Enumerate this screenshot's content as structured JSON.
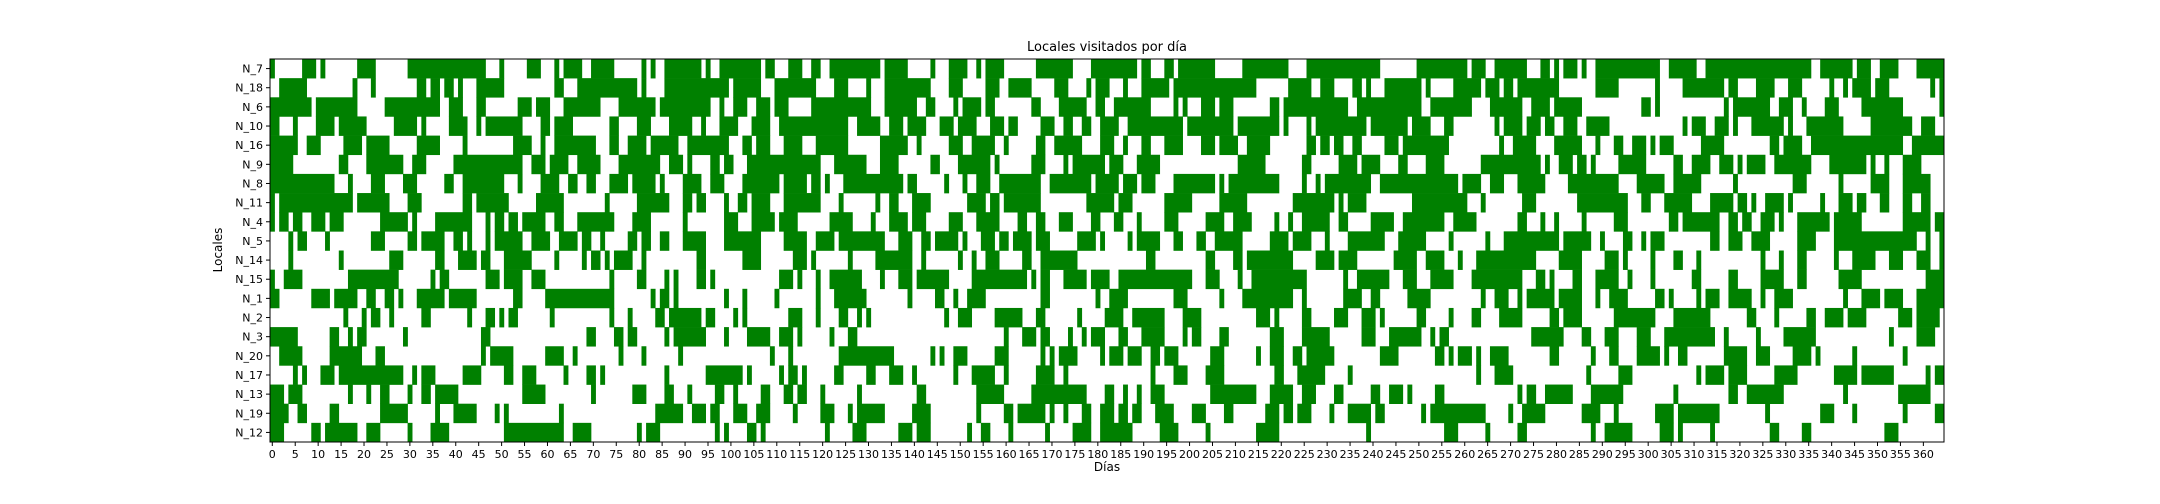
{
  "chart_data": {
    "type": "heatmap",
    "title": "Locales visitados por día",
    "xlabel": "Días",
    "ylabel": "Locales",
    "xlim": [
      0,
      365
    ],
    "x_ticks": [
      0,
      5,
      10,
      15,
      20,
      25,
      30,
      35,
      40,
      45,
      50,
      55,
      60,
      65,
      70,
      75,
      80,
      85,
      90,
      95,
      100,
      105,
      110,
      115,
      120,
      125,
      130,
      135,
      140,
      145,
      150,
      155,
      160,
      165,
      170,
      175,
      180,
      185,
      190,
      195,
      200,
      205,
      210,
      215,
      220,
      225,
      230,
      235,
      240,
      245,
      250,
      255,
      260,
      265,
      270,
      275,
      280,
      285,
      290,
      295,
      300,
      305,
      310,
      315,
      320,
      325,
      330,
      335,
      340,
      345,
      350,
      355,
      360
    ],
    "y_categories": [
      "N_7",
      "N_18",
      "N_6",
      "N_10",
      "N_16",
      "N_9",
      "N_8",
      "N_11",
      "N_4",
      "N_5",
      "N_14",
      "N_15",
      "N_1",
      "N_2",
      "N_3",
      "N_20",
      "N_17",
      "N_13",
      "N_19",
      "N_12"
    ],
    "visit_density": [
      0.66,
      0.62,
      0.6,
      0.58,
      0.57,
      0.55,
      0.54,
      0.52,
      0.47,
      0.46,
      0.44,
      0.42,
      0.41,
      0.4,
      0.38,
      0.37,
      0.36,
      0.34,
      0.32,
      0.3
    ],
    "colors": {
      "visited": "#008000",
      "not_visited": "#ffffff"
    },
    "grid": false,
    "legend": "none"
  }
}
